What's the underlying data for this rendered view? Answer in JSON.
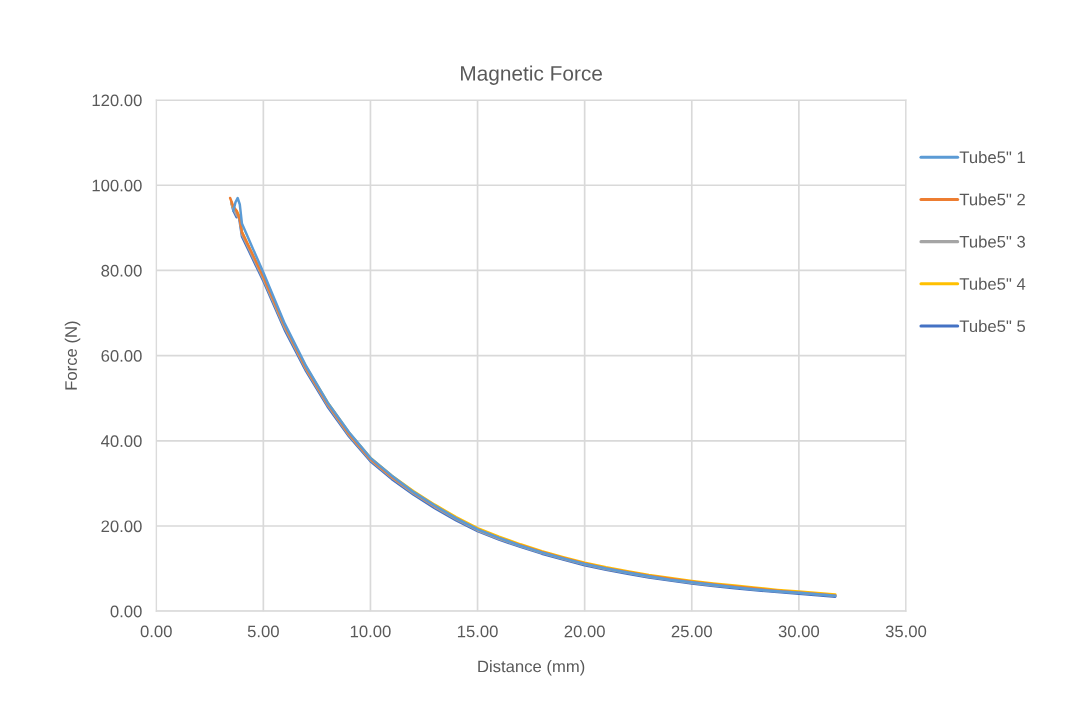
{
  "chart_data": {
    "type": "line",
    "title": "Magnetic Force",
    "xlabel": "Distance (mm)",
    "ylabel": "Force (N)",
    "xlim": [
      0,
      35
    ],
    "ylim": [
      0,
      120
    ],
    "xticks": [
      {
        "value": 0,
        "label": "0.00"
      },
      {
        "value": 5,
        "label": "5.00"
      },
      {
        "value": 10,
        "label": "10.00"
      },
      {
        "value": 15,
        "label": "15.00"
      },
      {
        "value": 20,
        "label": "20.00"
      },
      {
        "value": 25,
        "label": "25.00"
      },
      {
        "value": 30,
        "label": "30.00"
      },
      {
        "value": 35,
        "label": "35.00"
      }
    ],
    "yticks": [
      {
        "value": 0,
        "label": "0.00"
      },
      {
        "value": 20,
        "label": "20.00"
      },
      {
        "value": 40,
        "label": "40.00"
      },
      {
        "value": 60,
        "label": "60.00"
      },
      {
        "value": 80,
        "label": "80.00"
      },
      {
        "value": 100,
        "label": "100.00"
      },
      {
        "value": 120,
        "label": "120.00"
      }
    ],
    "grid": true,
    "legend": "right",
    "marker": "none",
    "line_style": "solid",
    "series": [
      {
        "name": "Tube5\" 1",
        "color": "#5b9bd5",
        "x": [
          3.6,
          3.7,
          3.8,
          3.9,
          4,
          5,
          6,
          7,
          8,
          9,
          10,
          11,
          12,
          13,
          14,
          15,
          16,
          17,
          18,
          19,
          20,
          21,
          22,
          23,
          24,
          25,
          26,
          27,
          28,
          29,
          30,
          31,
          31.7
        ],
        "values": [
          94,
          96,
          97,
          95.5,
          91,
          79.5,
          67.5,
          57.5,
          49,
          42,
          36,
          31.8,
          28,
          24.8,
          21.8,
          19.2,
          17.2,
          15.4,
          13.8,
          12.4,
          11.1,
          10,
          9.1,
          8.2,
          7.4,
          6.8,
          6.2,
          5.6,
          5.1,
          4.7,
          4.3,
          3.9,
          3.6
        ]
      },
      {
        "name": "Tube5\" 2",
        "color": "#ed7d31",
        "x": [
          3.45,
          3.6,
          3.75,
          3.9,
          4,
          5,
          6,
          7,
          8,
          9,
          10,
          11,
          12,
          13,
          14,
          15,
          16,
          17,
          18,
          19,
          20,
          21,
          22,
          23,
          24,
          25,
          26,
          27,
          28,
          29,
          30,
          31,
          31.7
        ],
        "values": [
          97,
          95,
          94,
          92,
          89,
          78.5,
          67,
          57,
          48.7,
          41.6,
          35.7,
          31.5,
          27.9,
          24.7,
          21.8,
          19.2,
          17.2,
          15.5,
          13.9,
          12.5,
          11.2,
          10.1,
          9.2,
          8.3,
          7.6,
          6.9,
          6.3,
          5.8,
          5.3,
          4.8,
          4.4,
          4,
          3.7
        ]
      },
      {
        "name": "Tube5\" 3",
        "color": "#a5a5a5",
        "x": [
          3.5,
          3.6,
          3.75,
          3.9,
          4,
          5,
          6,
          7,
          8,
          9,
          10,
          11,
          12,
          13,
          14,
          15,
          16,
          17,
          18,
          19,
          20,
          21,
          22,
          23,
          24,
          25,
          26,
          27,
          28,
          29,
          30,
          31,
          31.7
        ],
        "values": [
          96,
          94.5,
          93,
          92,
          88.5,
          78,
          66.5,
          56.7,
          48.4,
          41.3,
          35.5,
          31.3,
          27.7,
          24.5,
          21.6,
          19,
          17,
          15.3,
          13.7,
          12.3,
          11,
          9.9,
          9,
          8.1,
          7.4,
          6.7,
          6.1,
          5.6,
          5.1,
          4.7,
          4.3,
          3.9,
          3.6
        ]
      },
      {
        "name": "Tube5\" 4",
        "color": "#ffc000",
        "x": [
          3.5,
          3.6,
          3.75,
          3.9,
          4,
          5,
          6,
          7,
          8,
          9,
          10,
          11,
          12,
          13,
          14,
          15,
          16,
          17,
          18,
          19,
          20,
          21,
          22,
          23,
          24,
          25,
          26,
          27,
          28,
          29,
          30,
          31,
          31.7
        ],
        "values": [
          96,
          94.5,
          94,
          92.5,
          89,
          78.3,
          66.8,
          57.3,
          49,
          41.9,
          36,
          31.8,
          28.2,
          25,
          22.1,
          19.5,
          17.5,
          15.7,
          14.1,
          12.7,
          11.4,
          10.3,
          9.4,
          8.5,
          7.8,
          7.1,
          6.5,
          6,
          5.5,
          5,
          4.6,
          4.2,
          3.9
        ]
      },
      {
        "name": "Tube5\" 5",
        "color": "#4472c4",
        "x": [
          3.5,
          3.6,
          3.75,
          3.85,
          4,
          5,
          6,
          7,
          8,
          9,
          10,
          11,
          12,
          13,
          14,
          15,
          16,
          17,
          18,
          19,
          20,
          21,
          22,
          23,
          24,
          25,
          26,
          27,
          28,
          29,
          30,
          31,
          31.7
        ],
        "values": [
          96,
          94,
          92.5,
          93,
          88,
          77.5,
          66,
          56.3,
          48,
          41,
          35.2,
          31,
          27.4,
          24.2,
          21.3,
          18.8,
          16.8,
          15.1,
          13.5,
          12.1,
          10.8,
          9.7,
          8.8,
          7.9,
          7.2,
          6.5,
          5.9,
          5.4,
          4.9,
          4.5,
          4.1,
          3.7,
          3.4
        ]
      }
    ]
  }
}
